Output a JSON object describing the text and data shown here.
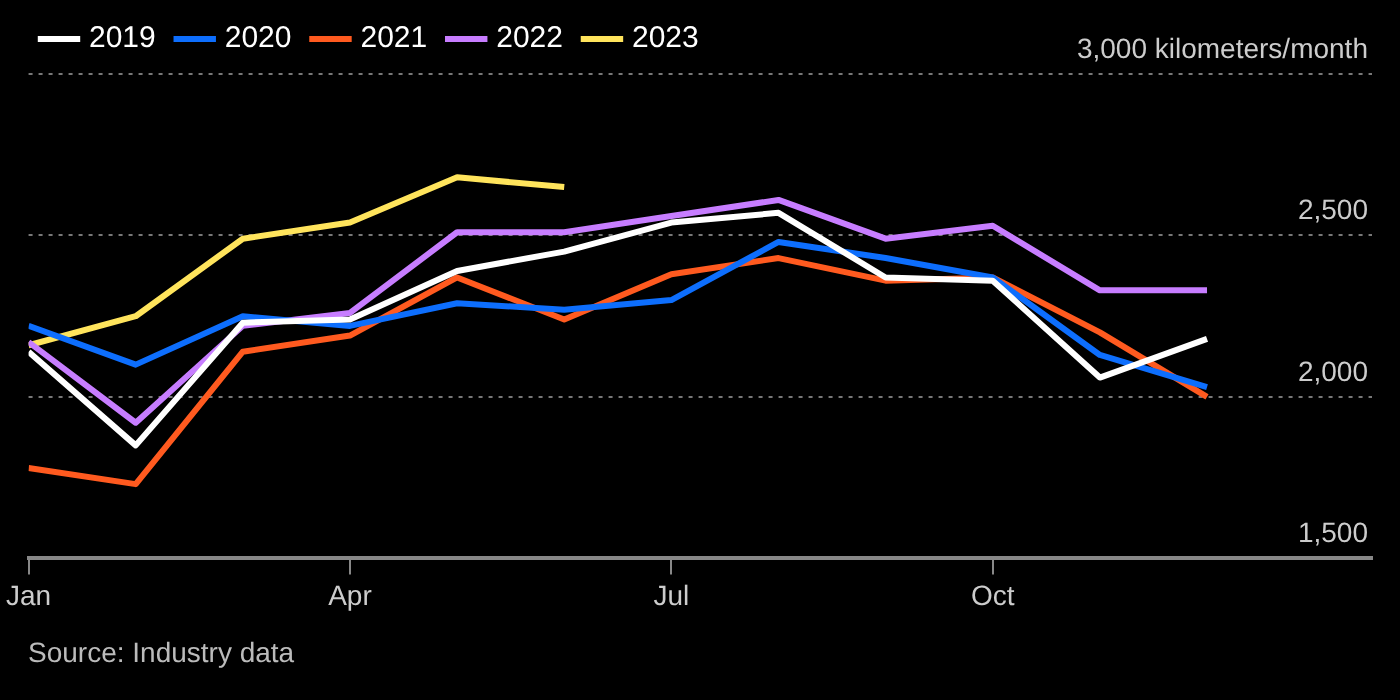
{
  "chart_data": {
    "type": "line",
    "categories": [
      "Jan",
      null,
      null,
      "Apr",
      null,
      null,
      "Jul",
      null,
      null,
      "Oct",
      null,
      null
    ],
    "series": [
      {
        "name": "2019",
        "color": "#ffffff",
        "values": [
          2140,
          1850,
          2230,
          2240,
          2390,
          2450,
          2540,
          2570,
          2370,
          2360,
          2060,
          2180
        ]
      },
      {
        "name": "2020",
        "color": "#0d6efd",
        "values": [
          2220,
          2100,
          2250,
          2220,
          2290,
          2270,
          2300,
          2480,
          2430,
          2370,
          2130,
          2030
        ]
      },
      {
        "name": "2021",
        "color": "#ff5a1f",
        "values": [
          1780,
          1730,
          2140,
          2190,
          2370,
          2240,
          2380,
          2430,
          2360,
          2370,
          2200,
          2000
        ]
      },
      {
        "name": "2022",
        "color": "#c77dff",
        "values": [
          2170,
          1920,
          2220,
          2260,
          2510,
          2510,
          2560,
          2610,
          2490,
          2530,
          2330,
          2330
        ]
      },
      {
        "name": "2023",
        "color": "#ffe45c",
        "values": [
          2160,
          2250,
          2490,
          2540,
          2680,
          2650,
          null,
          null,
          null,
          null,
          null,
          null
        ]
      }
    ],
    "ylim": [
      1500,
      3000
    ],
    "yticks": [
      {
        "value": 1500,
        "label": "1,500"
      },
      {
        "value": 2000,
        "label": "2,000"
      },
      {
        "value": 2500,
        "label": "2,500"
      },
      {
        "value": 3000,
        "label": "3,000 kilometers/month"
      }
    ],
    "grid": "y",
    "legend": "top left",
    "marker": "none",
    "line_style": "solid",
    "annotations": [
      "Source: Industry data"
    ]
  }
}
